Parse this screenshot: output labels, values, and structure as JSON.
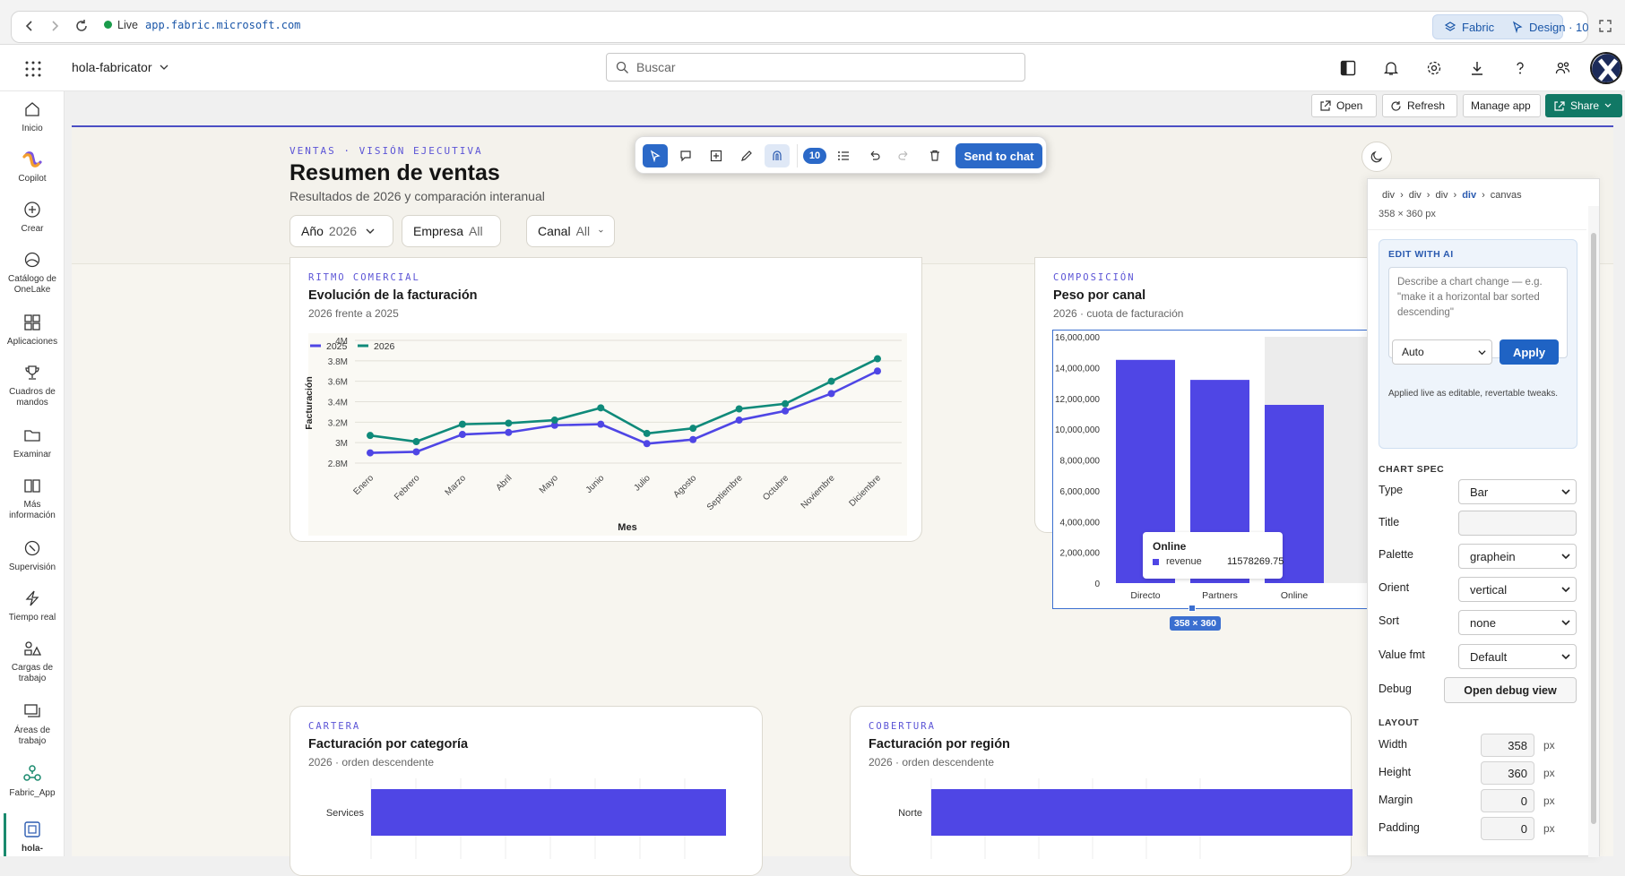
{
  "browser": {
    "live_label": "Live",
    "url": "app.fabric.microsoft.com",
    "fabric_pill": "Fabric",
    "design_pill": "Design · 10"
  },
  "header": {
    "workspace": "hola-fabricator",
    "search_placeholder": "Buscar"
  },
  "rail": {
    "items": [
      {
        "label": "Inicio",
        "icon": "home-icon"
      },
      {
        "label": "Copilot",
        "icon": "copilot-icon"
      },
      {
        "label": "Crear",
        "icon": "plus-circle-icon"
      },
      {
        "label": "Catálogo de OneLake",
        "icon": "onelake-icon"
      },
      {
        "label": "Aplicaciones",
        "icon": "apps-icon"
      },
      {
        "label": "Cuadros de mandos",
        "icon": "trophy-icon"
      },
      {
        "label": "Examinar",
        "icon": "folder-icon"
      },
      {
        "label": "Más información",
        "icon": "book-icon"
      },
      {
        "label": "Supervisión",
        "icon": "monitor-icon"
      },
      {
        "label": "Tiempo real",
        "icon": "lightning-icon"
      },
      {
        "label": "Cargas de trabajo",
        "icon": "workloads-icon"
      },
      {
        "label": "Áreas de trabajo",
        "icon": "workspaces-icon"
      },
      {
        "label": "Fabric_App",
        "icon": "fabric-app-icon"
      },
      {
        "label": "hola-",
        "icon": "app-item-icon"
      }
    ]
  },
  "actions": {
    "open": "Open",
    "refresh": "Refresh",
    "manage": "Manage app",
    "share": "Share"
  },
  "toolbar": {
    "count": "10",
    "send": "Send to chat"
  },
  "dashboard": {
    "kicker": "VENTAS · VISIÓN EJECUTIVA",
    "title": "Resumen de ventas",
    "subtitle": "Resultados de 2026 y comparación interanual",
    "filters": [
      {
        "label": "Año",
        "value": "2026"
      },
      {
        "label": "Empresa",
        "value": "All"
      },
      {
        "label": "Canal",
        "value": "All"
      }
    ]
  },
  "cards": {
    "trend": {
      "kicker": "RITMO COMERCIAL",
      "title": "Evolución de la facturación",
      "subtitle": "2026 frente a 2025"
    },
    "channel": {
      "kicker": "COMPOSICIÓN",
      "title": "Peso por canal",
      "subtitle": "2026 · cuota de facturación"
    },
    "category": {
      "kicker": "CARTERA",
      "title": "Facturación por categoría",
      "subtitle": "2026 · orden descendente"
    },
    "region": {
      "kicker": "COBERTURA",
      "title": "Facturación por región",
      "subtitle": "2026 · orden descendente"
    }
  },
  "chart_data": [
    {
      "type": "line",
      "x": [
        "Enero",
        "Febrero",
        "Marzo",
        "Abril",
        "Mayo",
        "Junio",
        "Julio",
        "Agosto",
        "Septiembre",
        "Octubre",
        "Noviembre",
        "Diciembre"
      ],
      "series": [
        {
          "name": "2025",
          "color": "#4f46e5",
          "values": [
            2900000,
            2910000,
            3080000,
            3100000,
            3170000,
            3180000,
            2990000,
            3030000,
            3220000,
            3310000,
            3480000,
            3700000
          ]
        },
        {
          "name": "2026",
          "color": "#0f8a7a",
          "values": [
            3070000,
            3010000,
            3180000,
            3190000,
            3220000,
            3340000,
            3090000,
            3140000,
            3330000,
            3380000,
            3600000,
            3820000
          ]
        }
      ],
      "xlabel": "Mes",
      "ylabel": "Facturación",
      "yticks": [
        "2.8M",
        "3M",
        "3.2M",
        "3.4M",
        "3.6M",
        "3.8M",
        "4M"
      ],
      "ylim": [
        2800000,
        4000000
      ],
      "legend": "top-left",
      "grid": true
    },
    {
      "type": "bar",
      "categories": [
        "Directo",
        "Partners",
        "Online"
      ],
      "values": [
        14500000,
        13200000,
        11578269.75
      ],
      "ylim": [
        0,
        16000000
      ],
      "yticks": [
        "0",
        "2,000,000",
        "4,000,000",
        "6,000,000",
        "8,000,000",
        "10,000,000",
        "12,000,000",
        "14,000,000",
        "16,000,000"
      ],
      "color": "#4f46e5",
      "tooltip": {
        "title": "Online",
        "series": "revenue",
        "value": "11578269.75"
      },
      "size_badge": "358 × 360"
    },
    {
      "type": "bar",
      "orientation": "horizontal",
      "categories": [
        "Services"
      ],
      "values": [
        1
      ],
      "color": "#4f46e5"
    },
    {
      "type": "bar",
      "orientation": "horizontal",
      "categories": [
        "Norte"
      ],
      "values": [
        1
      ],
      "color": "#4f46e5"
    }
  ],
  "panel": {
    "breadcrumb": [
      "div",
      "div",
      "div",
      "div",
      "canvas"
    ],
    "size": "358 × 360 px",
    "edit_heading": "EDIT WITH AI",
    "edit_placeholder": "Describe a chart change — e.g. \"make it a horizontal bar sorted descending\"",
    "mode": "Auto",
    "apply": "Apply",
    "note": "Applied live as editable, revertable tweaks.",
    "spec_heading": "CHART SPEC",
    "spec": [
      {
        "label": "Type",
        "value": "Bar"
      },
      {
        "label": "Title",
        "value": ""
      },
      {
        "label": "Palette",
        "value": "graphein"
      },
      {
        "label": "Orient",
        "value": "vertical"
      },
      {
        "label": "Sort",
        "value": "none"
      },
      {
        "label": "Value fmt",
        "value": "Default"
      }
    ],
    "debug_label": "Debug",
    "debug_button": "Open debug view",
    "layout_heading": "LAYOUT",
    "layout": [
      {
        "label": "Width",
        "value": "358",
        "unit": "px"
      },
      {
        "label": "Height",
        "value": "360",
        "unit": "px"
      },
      {
        "label": "Margin",
        "value": "0",
        "unit": "px"
      },
      {
        "label": "Padding",
        "value": "0",
        "unit": "px"
      }
    ]
  }
}
